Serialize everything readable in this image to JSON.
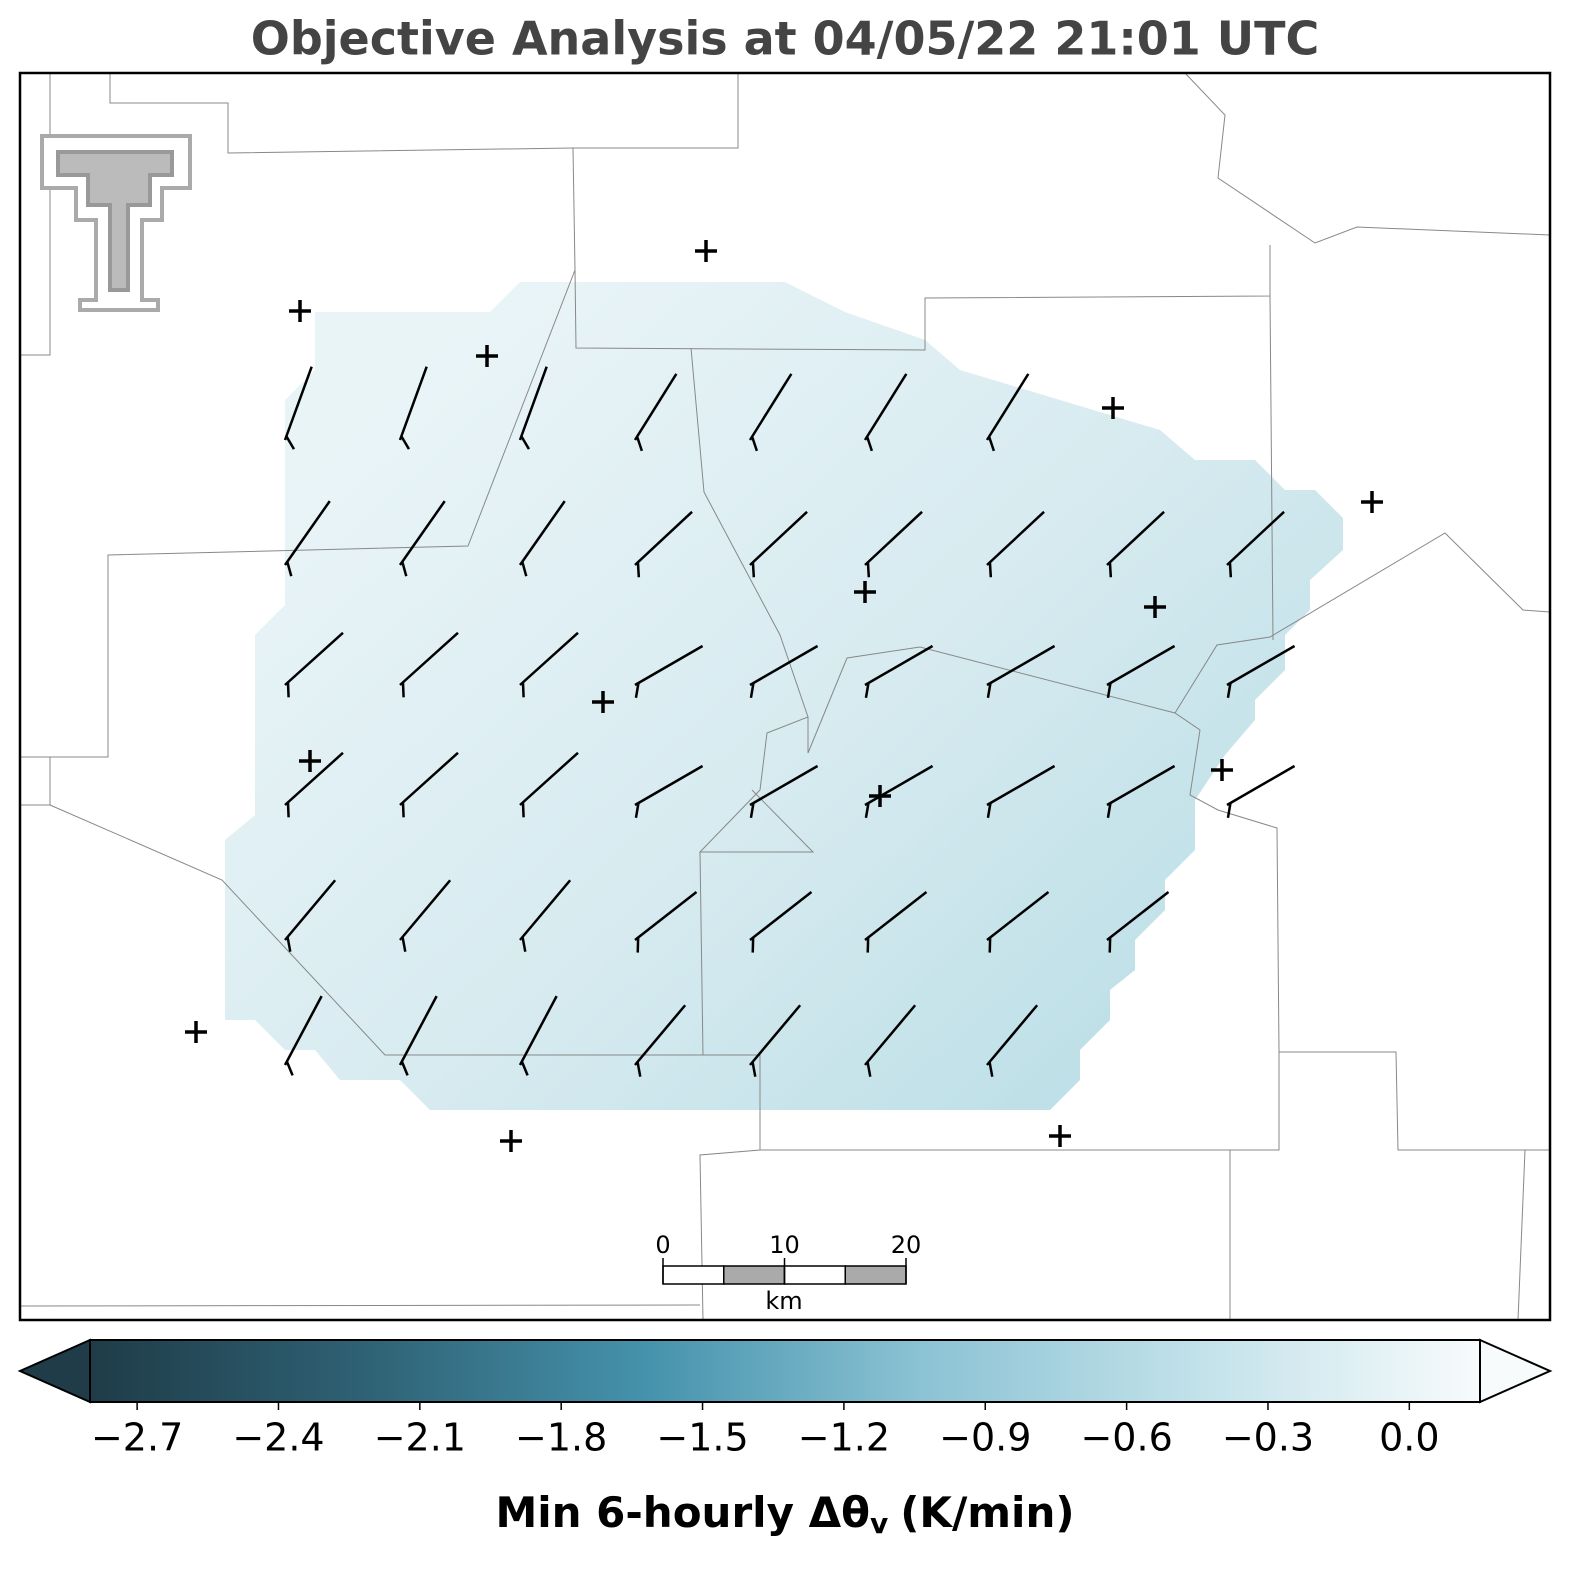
{
  "chart_data": {
    "type": "contour",
    "title": "Objective Analysis at 04/05/22 21:01 UTC",
    "colorbar": {
      "clim": [
        -2.8,
        0.15
      ],
      "ticks": [
        {
          "value": -2.7,
          "label": "−2.7"
        },
        {
          "value": -2.4,
          "label": "−2.4"
        },
        {
          "value": -2.1,
          "label": "−2.1"
        },
        {
          "value": -1.8,
          "label": "−1.8"
        },
        {
          "value": -1.5,
          "label": "−1.5"
        },
        {
          "value": -1.2,
          "label": "−1.2"
        },
        {
          "value": -0.9,
          "label": "−0.9"
        },
        {
          "value": -0.6,
          "label": "−0.6"
        },
        {
          "value": -0.3,
          "label": "−0.3"
        },
        {
          "value": 0,
          "label": "0.0"
        }
      ],
      "colormap": [
        "#1f3c48",
        "#2f6275",
        "#4592ac",
        "#8cc3d4",
        "#c3e2ea",
        "#f7fbfc"
      ],
      "extend": "both",
      "label": "Min 6-hourly Δθ",
      "label_subscript": "v",
      "label_units": "(K/min)"
    },
    "scalebar": {
      "ticks": [
        0,
        10,
        20
      ],
      "unit": "km"
    }
  }
}
